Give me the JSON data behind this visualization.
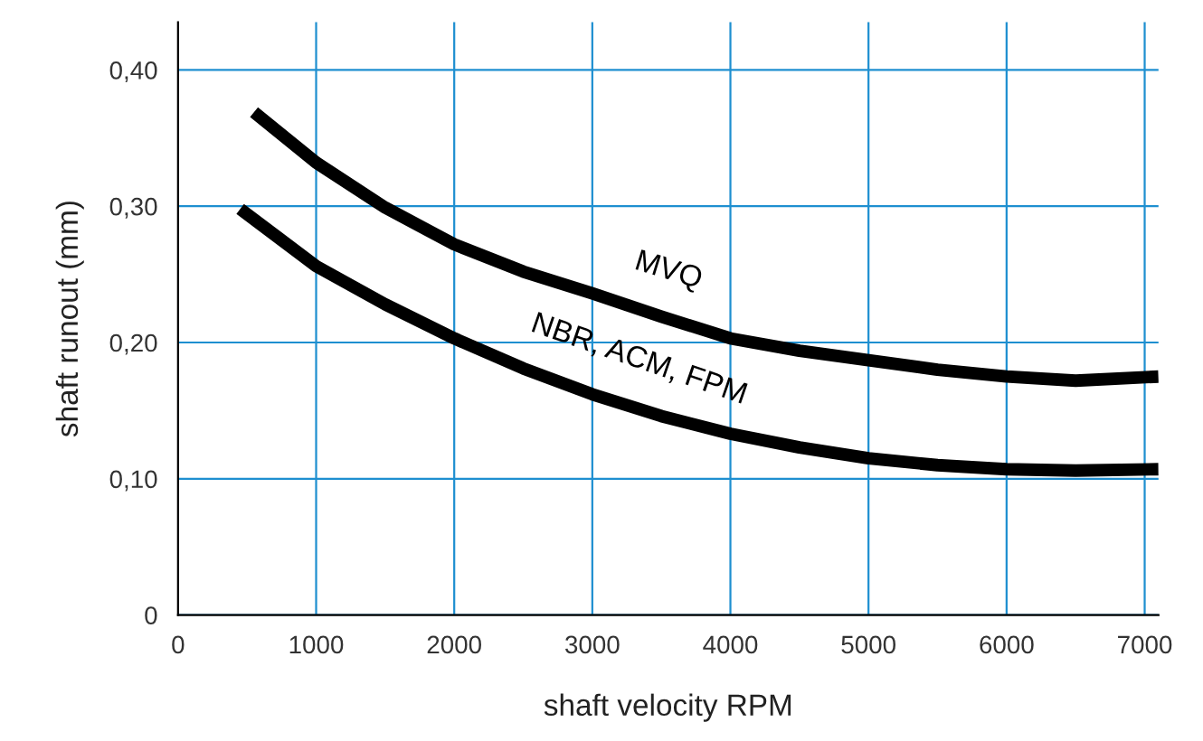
{
  "chart_data": {
    "type": "line",
    "xlabel": "shaft velocity RPM",
    "ylabel": "shaft runout (mm)",
    "xlim": [
      0,
      7100
    ],
    "xticks": [
      0,
      1000,
      2000,
      3000,
      4000,
      5000,
      6000,
      7000
    ],
    "ylim": [
      0,
      0.435
    ],
    "yticks": [
      {
        "value": 0,
        "label": "0"
      },
      {
        "value": 0.1,
        "label": "0,10"
      },
      {
        "value": 0.2,
        "label": "0,20"
      },
      {
        "value": 0.3,
        "label": "0,30"
      },
      {
        "value": 0.4,
        "label": "0,40"
      }
    ],
    "grid": true,
    "legend": false,
    "marker": "none",
    "line_style": "solid",
    "series": [
      {
        "color": "#000000",
        "x": [
          550,
          1000,
          1500,
          2000,
          2500,
          3000,
          3500,
          4000,
          4500,
          5000,
          5500,
          6000,
          6500,
          7100
        ],
        "values": [
          0.369,
          0.332,
          0.299,
          0.272,
          0.252,
          0.236,
          0.219,
          0.203,
          0.194,
          0.187,
          0.18,
          0.175,
          0.172,
          0.175
        ]
      },
      {
        "color": "#000000",
        "x": [
          450,
          1000,
          1500,
          2000,
          2500,
          3000,
          3500,
          4000,
          4500,
          5000,
          5500,
          6000,
          6500,
          7100
        ],
        "values": [
          0.298,
          0.256,
          0.228,
          0.203,
          0.181,
          0.162,
          0.146,
          0.133,
          0.123,
          0.115,
          0.11,
          0.107,
          0.106,
          0.107
        ]
      }
    ],
    "annotations": [
      "MVQ",
      "NBR, ACM, FPM"
    ]
  }
}
